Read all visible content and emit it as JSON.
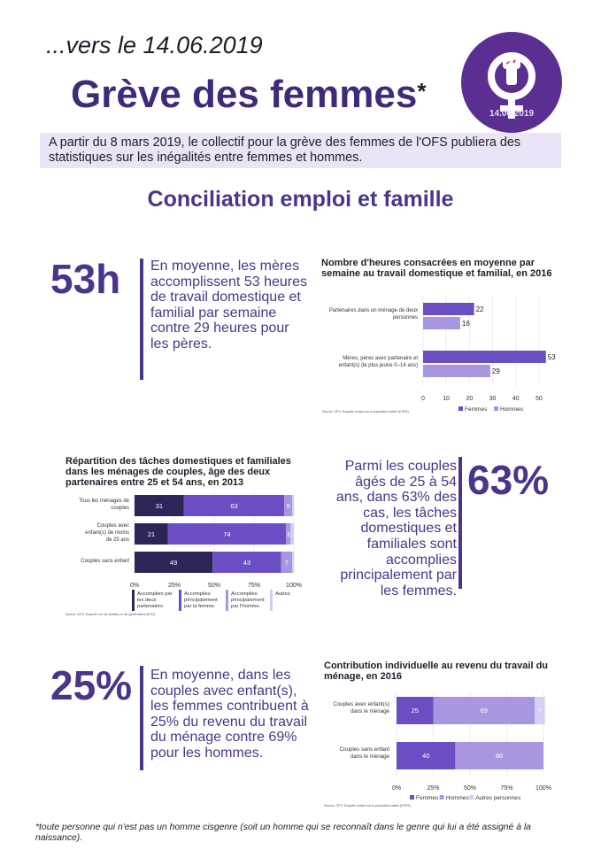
{
  "header": {
    "subtitle": "...vers le 14.06.2019",
    "title": "Grève des femmes",
    "title_mark": "*",
    "logo_icon": "female-symbol-raised-fist-icon",
    "logo_date": "14.06.2019",
    "intro": "A partir du 8 mars 2019, le collectif pour la grève des femmes de l'OFS publiera des statistiques sur les inégalités entre femmes et hommes."
  },
  "section_title": "Conciliation emploi et famille",
  "stats": [
    {
      "value": "53h",
      "text": "En moyenne, les mères accomplissent 53 heures de travail domestique et familial par semaine contre 29 heures pour les pères."
    },
    {
      "value": "63%",
      "text": "Parmi les couples âgés de 25 à 54 ans, dans 63% des cas, les tâches domestiques et familiales sont accomplies principalement par les femmes."
    },
    {
      "value": "25%",
      "text": "En moyenne, dans les couples avec enfant(s), les femmes contribuent à 25% du revenu du travail du ménage contre 69% pour les hommes."
    }
  ],
  "colors": {
    "brand": "#4a358a",
    "dark": "#2d2558",
    "mid": "#6a4fc4",
    "light": "#a996e0",
    "pale": "#d7ccf2"
  },
  "chart_data": [
    {
      "type": "bar",
      "orientation": "horizontal",
      "title": "Nombre d'heures consacrées en moyenne par semaine au travail domestique et familial, en 2016",
      "categories": [
        "Partenaires dans un ménage de deux personnes",
        "Mères, pères avec partenaire et enfant(s) (le plus jeune 0–14 ans)"
      ],
      "series": [
        {
          "name": "Femmes",
          "values": [
            22,
            53
          ],
          "color": "#6a4fc4"
        },
        {
          "name": "Hommes",
          "values": [
            16,
            29
          ],
          "color": "#a996e0"
        }
      ],
      "xlim": [
        0,
        55
      ],
      "xticks": [
        0,
        10,
        20,
        30,
        40,
        50
      ],
      "legend": "bottom",
      "source": "Source: OFS, Enquête suisse sur la population active (ESPA)"
    },
    {
      "type": "bar",
      "orientation": "horizontal",
      "stacked": true,
      "title": "Répartition des tâches domestiques et familiales dans les ménages de couples, âge des deux partenaires entre 25 et 54 ans, en 2013",
      "categories": [
        "Tous les ménages de couples",
        "Couples avec enfant(s) de moins de 25 ans",
        "Couples sans enfant"
      ],
      "series": [
        {
          "name": "Accomplies par les deux partenaires",
          "values": [
            31,
            21,
            49
          ],
          "color": "#2d2558"
        },
        {
          "name": "Accomplies principalement par la femme",
          "values": [
            63,
            74,
            43
          ],
          "color": "#6a4fc4"
        },
        {
          "name": "Accomplies principalement par l'homme",
          "values": [
            5,
            3,
            7
          ],
          "color": "#a996e0"
        },
        {
          "name": "Autres",
          "values": [
            1,
            2,
            1
          ],
          "color": "#d7ccf2"
        }
      ],
      "xlim": [
        0,
        100
      ],
      "xticks": [
        "0%",
        "25%",
        "50%",
        "75%",
        "100%"
      ],
      "legend": "bottom",
      "source": "Source: OFS, Enquête sur les familles et les générations (EFG)"
    },
    {
      "type": "bar",
      "orientation": "horizontal",
      "stacked": true,
      "title": "Contribution individuelle au revenu du travail du ménage, en 2016",
      "categories": [
        "Couples avec enfant(s) dans le ménage",
        "Couples sans enfant dans le ménage"
      ],
      "series": [
        {
          "name": "Femmes",
          "values": [
            25,
            40
          ],
          "color": "#6a4fc4"
        },
        {
          "name": "Hommes",
          "values": [
            69,
            60
          ],
          "color": "#a996e0"
        },
        {
          "name": "Autres personnes",
          "values": [
            7,
            0
          ],
          "color": "#d7ccf2"
        }
      ],
      "xlim": [
        0,
        100
      ],
      "xticks": [
        "0%",
        "25%",
        "50%",
        "75%",
        "100%"
      ],
      "legend": "bottom",
      "source": "Source: OFS, Enquête suisse sur la population active (ESPA)"
    }
  ],
  "footnote": "*toute personne qui n'est pas un homme cisgenre (soit un homme qui se reconnaît dans le genre qui lui a été assigné à la naissance)."
}
